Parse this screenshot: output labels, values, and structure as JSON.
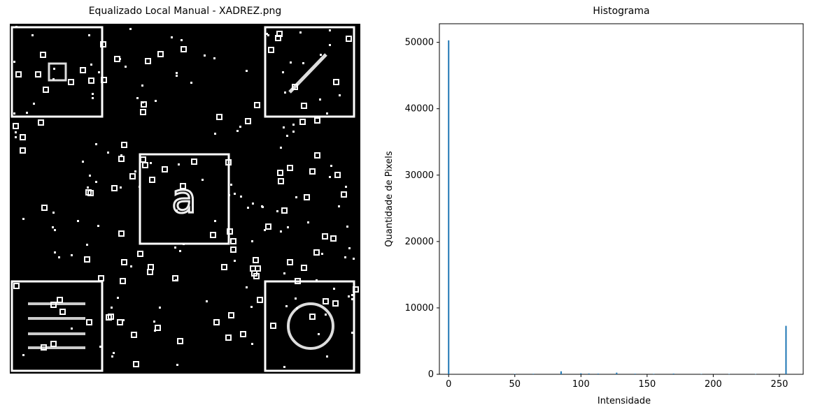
{
  "figure": {
    "left_title": "Equalizado Local Manual - XADREZ.png",
    "right_title": "Histograma"
  },
  "chart_data": [
    {
      "type": "image",
      "title": "Equalizado Local Manual - XADREZ.png"
    },
    {
      "type": "bar",
      "title": "Histograma",
      "xlabel": "Intensidade",
      "ylabel": "Quantidade de Pixels",
      "xlim": [
        -7,
        268
      ],
      "ylim": [
        0,
        52800
      ],
      "xticks": [
        0,
        50,
        100,
        150,
        200,
        250
      ],
      "yticks": [
        0,
        10000,
        20000,
        30000,
        40000,
        50000
      ],
      "bar_color": "#1f77b4",
      "x": [
        0,
        50,
        64,
        85,
        100,
        106,
        113,
        127,
        141,
        155,
        170,
        191,
        212,
        232,
        255
      ],
      "values": [
        50300,
        60,
        80,
        450,
        150,
        120,
        100,
        250,
        90,
        70,
        110,
        60,
        50,
        40,
        7300
      ]
    }
  ]
}
